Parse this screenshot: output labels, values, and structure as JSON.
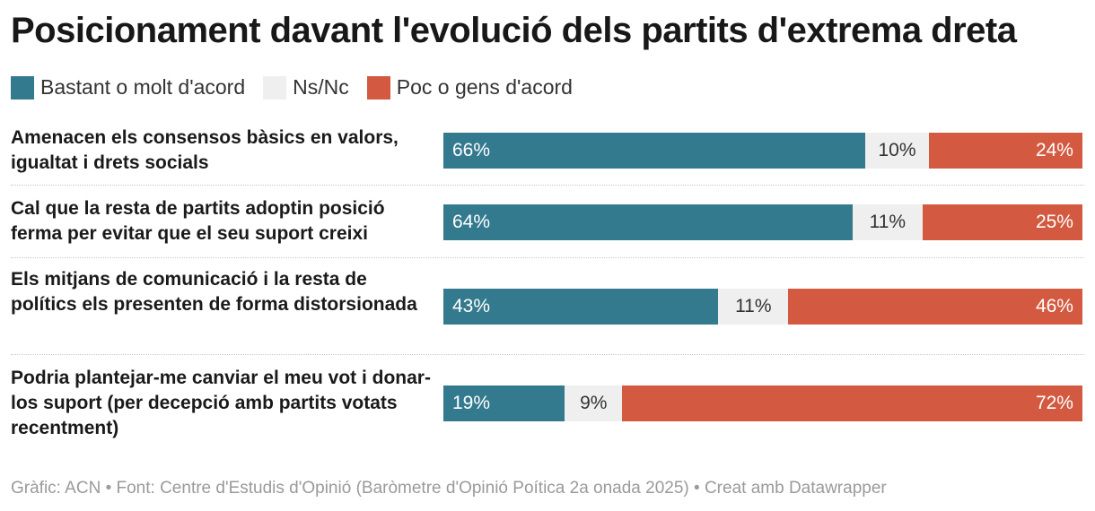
{
  "chart_data": {
    "type": "bar",
    "orientation": "horizontal",
    "stacked": true,
    "title": "Posicionament davant l'evolució dels partits d'extrema dreta",
    "legend_position": "top-left",
    "series": [
      {
        "key": "agree",
        "name": "Bastant o molt d'acord",
        "color": "#347A8F"
      },
      {
        "key": "nsnc",
        "name": "Ns/Nc",
        "color": "#EFEFEF"
      },
      {
        "key": "disagree",
        "name": "Poc o gens d'acord",
        "color": "#D35A40"
      }
    ],
    "rows": [
      {
        "label": "Amenacen els consensos bàsics en valors, igualtat i drets socials",
        "values": [
          66,
          10,
          24
        ],
        "value_labels": [
          "66%",
          "10%",
          "24%"
        ]
      },
      {
        "label": "Cal que la resta de partits adoptin posició ferma per evitar que el seu suport creixi",
        "values": [
          64,
          11,
          25
        ],
        "value_labels": [
          "64%",
          "11%",
          "25%"
        ]
      },
      {
        "label": "Els mitjans de comunicació i la resta de polítics els presenten de forma distorsionada",
        "values": [
          43,
          11,
          46
        ],
        "value_labels": [
          "43%",
          "11%",
          "46%"
        ]
      },
      {
        "label": "Podria plantejar-me canviar el meu vot i donar-los suport (per decepció amb partits votats recentment)",
        "values": [
          19,
          9,
          72
        ],
        "value_labels": [
          "19%",
          "9%",
          "72%"
        ]
      }
    ],
    "xlim": [
      0,
      100
    ]
  },
  "footer": "Gràfic: ACN • Font: Centre d'Estudis d'Opinió (Baròmetre d'Opinió Poítica 2a onada 2025) • Creat amb Datawrapper"
}
